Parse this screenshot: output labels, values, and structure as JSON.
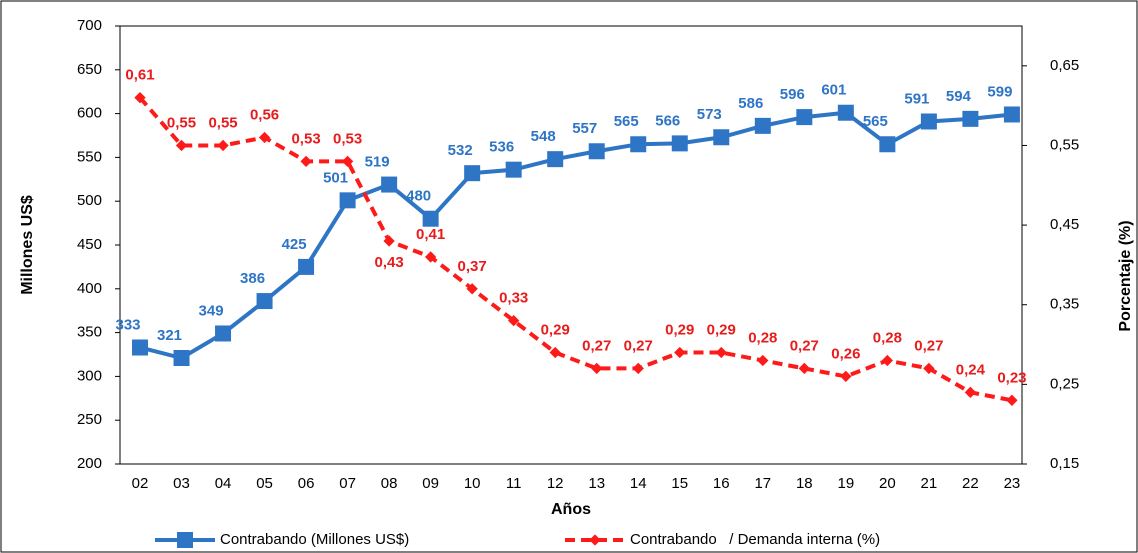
{
  "chart_data": {
    "type": "line",
    "x_label": "Años",
    "y_label": "Millones US$",
    "y2_label": "Porcentaje (%)",
    "categories": [
      "02",
      "03",
      "04",
      "05",
      "06",
      "07",
      "08",
      "09",
      "10",
      "11",
      "12",
      "13",
      "14",
      "15",
      "16",
      "17",
      "18",
      "19",
      "20",
      "21",
      "22",
      "23"
    ],
    "series": [
      {
        "name": "Contrabando (Millones US$)",
        "color": "#2e75c6",
        "values": [
          333,
          321,
          349,
          386,
          425,
          501,
          519,
          480,
          532,
          536,
          548,
          557,
          565,
          566,
          573,
          586,
          596,
          601,
          565,
          591,
          594,
          599
        ]
      },
      {
        "name": "Contrabando   / Demanda interna (%)",
        "color": "#ff1a1a",
        "axis": "y2",
        "values": [
          0.61,
          0.55,
          0.55,
          0.56,
          0.53,
          0.53,
          0.43,
          0.41,
          0.37,
          0.33,
          0.29,
          0.27,
          0.27,
          0.29,
          0.29,
          0.28,
          0.27,
          0.26,
          0.28,
          0.27,
          0.24,
          0.23
        ],
        "value_labels": [
          "0,61",
          "0,55",
          "0,55",
          "0,56",
          "0,53",
          "0,53",
          "0,43",
          "0,41",
          "0,37",
          "0,33",
          "0,29",
          "0,27",
          "0,27",
          "0,29",
          "0,29",
          "0,28",
          "0,27",
          "0,26",
          "0,28",
          "0,27",
          "0,24",
          "0,23"
        ]
      }
    ],
    "ylim": [
      200,
      700
    ],
    "yticks": [
      200,
      250,
      300,
      350,
      400,
      450,
      500,
      550,
      600,
      650,
      700
    ],
    "y2lim": [
      0.15,
      0.7
    ],
    "y2ticks": [
      {
        "value": 0.15,
        "label": "0,15"
      },
      {
        "value": 0.25,
        "label": "0,25"
      },
      {
        "value": 0.35,
        "label": "0,35"
      },
      {
        "value": 0.45,
        "label": "0,45"
      },
      {
        "value": 0.55,
        "label": "0,55"
      },
      {
        "value": 0.65,
        "label": "0,65"
      }
    ],
    "legend": "bottom"
  }
}
